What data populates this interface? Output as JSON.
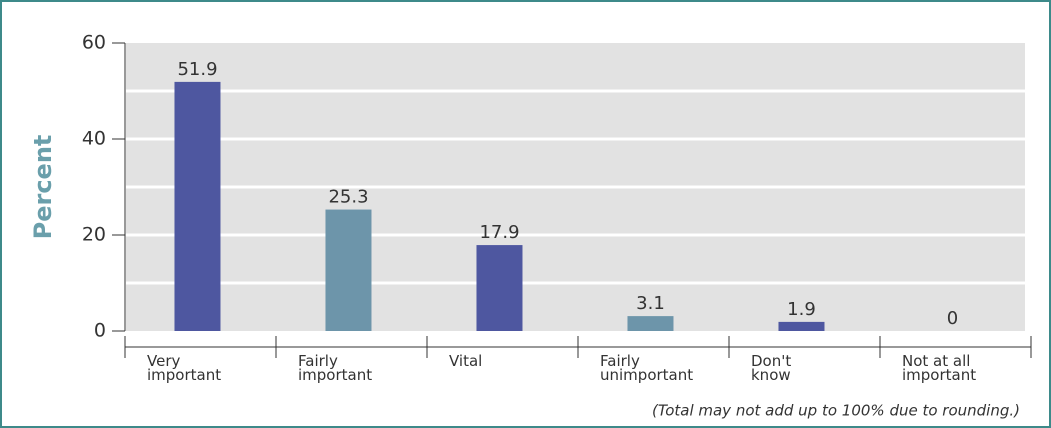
{
  "chart_data": {
    "type": "bar",
    "y_label": "Percent",
    "categories": [
      [
        "Very",
        "important"
      ],
      [
        "Fairly",
        "important"
      ],
      [
        "Vital"
      ],
      [
        "Fairly",
        "unimportant"
      ],
      [
        "Don't",
        "know"
      ],
      [
        "Not at all",
        "important"
      ]
    ],
    "values": [
      51.9,
      25.3,
      17.9,
      3.1,
      1.9,
      0
    ],
    "colors": [
      "#4e57a0",
      "#6d95aa",
      "#4e57a0",
      "#6d95aa",
      "#4e57a0",
      "#6d95aa"
    ],
    "ylim": [
      0,
      60
    ],
    "yticks": [
      0,
      20,
      40,
      60
    ],
    "grid_lines": [
      10,
      20,
      30,
      40,
      50
    ],
    "footnote": "(Total may not add up to 100% due to rounding.)"
  }
}
